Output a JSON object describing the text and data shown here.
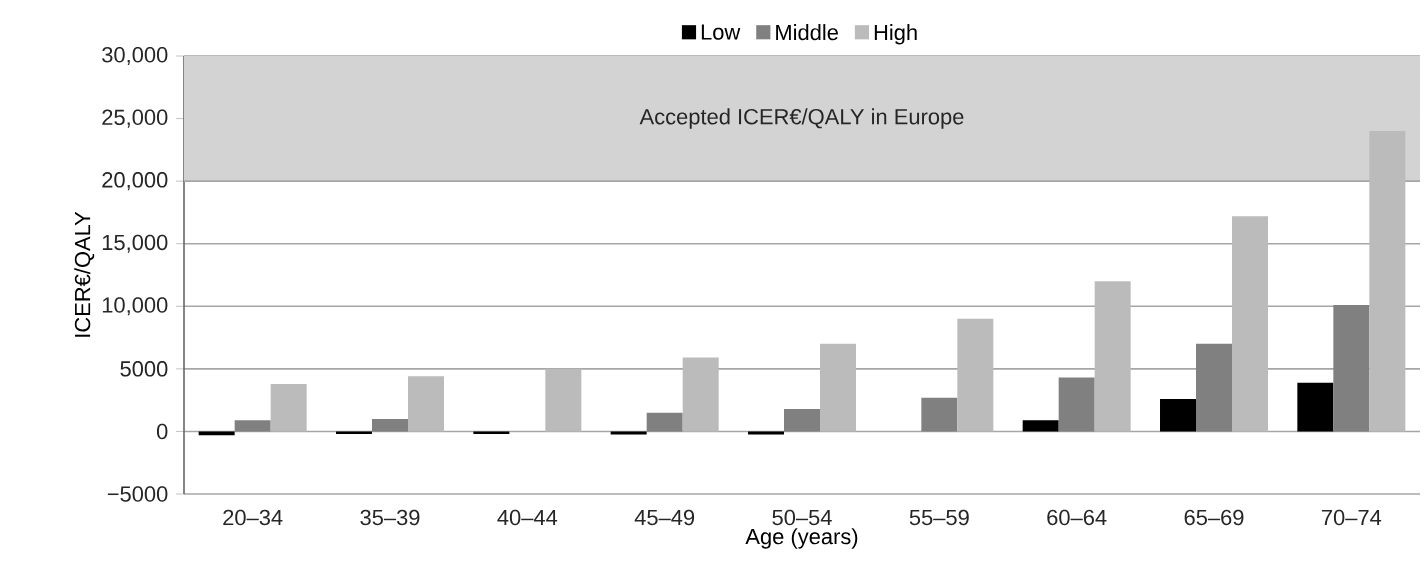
{
  "chart_data": {
    "type": "bar",
    "xlabel": "Age (years)",
    "ylabel": "ICER€/QALY",
    "categories": [
      "20–34",
      "35–39",
      "40–44",
      "45–49",
      "50–54",
      "55–59",
      "60–64",
      "65–69",
      "70–74"
    ],
    "series": [
      {
        "name": "Low",
        "color": "#000000",
        "values": [
          -300,
          -200,
          -200,
          -250,
          -250,
          null,
          900,
          2600,
          3900
        ]
      },
      {
        "name": "Middle",
        "color": "#808080",
        "values": [
          900,
          1000,
          null,
          1500,
          1800,
          2700,
          4300,
          7000,
          10100
        ]
      },
      {
        "name": "High",
        "color": "#bbbbbb",
        "values": [
          3800,
          4400,
          5000,
          5900,
          7000,
          9000,
          12000,
          17200,
          24000
        ]
      }
    ],
    "ylim": [
      -5000,
      30000
    ],
    "yticks": [
      {
        "value": -5000,
        "label": "−5000"
      },
      0,
      5000,
      {
        "value": 10000,
        "label": "10,000"
      },
      {
        "value": 15000,
        "label": "15,000"
      },
      {
        "value": 20000,
        "label": "20,000"
      },
      {
        "value": 25000,
        "label": "25,000"
      },
      {
        "value": 30000,
        "label": "30,000"
      }
    ],
    "bands": [
      {
        "axis": "y",
        "from": 20000,
        "to": 30000,
        "label": "Accepted ICER€/QALY in Europe",
        "color": "#d3d3d3"
      }
    ],
    "grid": "y",
    "legend": "top"
  }
}
